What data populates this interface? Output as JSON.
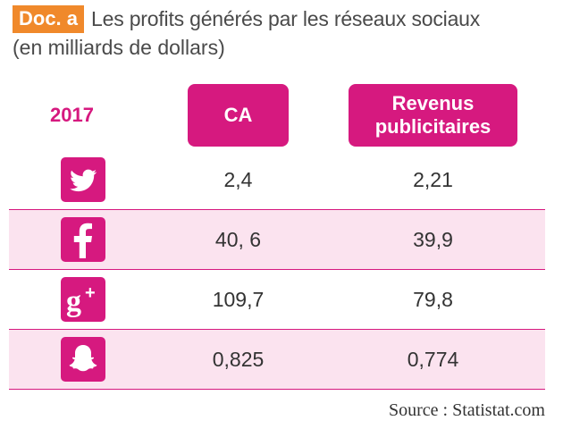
{
  "badge": "Doc. a",
  "title": "Les profits générés par les réseaux sociaux",
  "subtitle": "(en milliards de dollars)",
  "colors": {
    "accent": "#d6197f",
    "badge": "#f0892b",
    "stripe": "#fbe3ef"
  },
  "table": {
    "year": "2017",
    "col_ca": "CA",
    "col_revenue": "Revenus\npublicitaires",
    "rows": [
      {
        "network": "twitter-icon",
        "ca": "2,4",
        "revenue": "2,21"
      },
      {
        "network": "facebook-icon",
        "ca": "40, 6",
        "revenue": "39,9"
      },
      {
        "network": "google-plus-icon",
        "ca": "109,7",
        "revenue": "79,8"
      },
      {
        "network": "snapchat-icon",
        "ca": "0,825",
        "revenue": "0,774"
      }
    ]
  },
  "source": "Source : Statistat.com"
}
